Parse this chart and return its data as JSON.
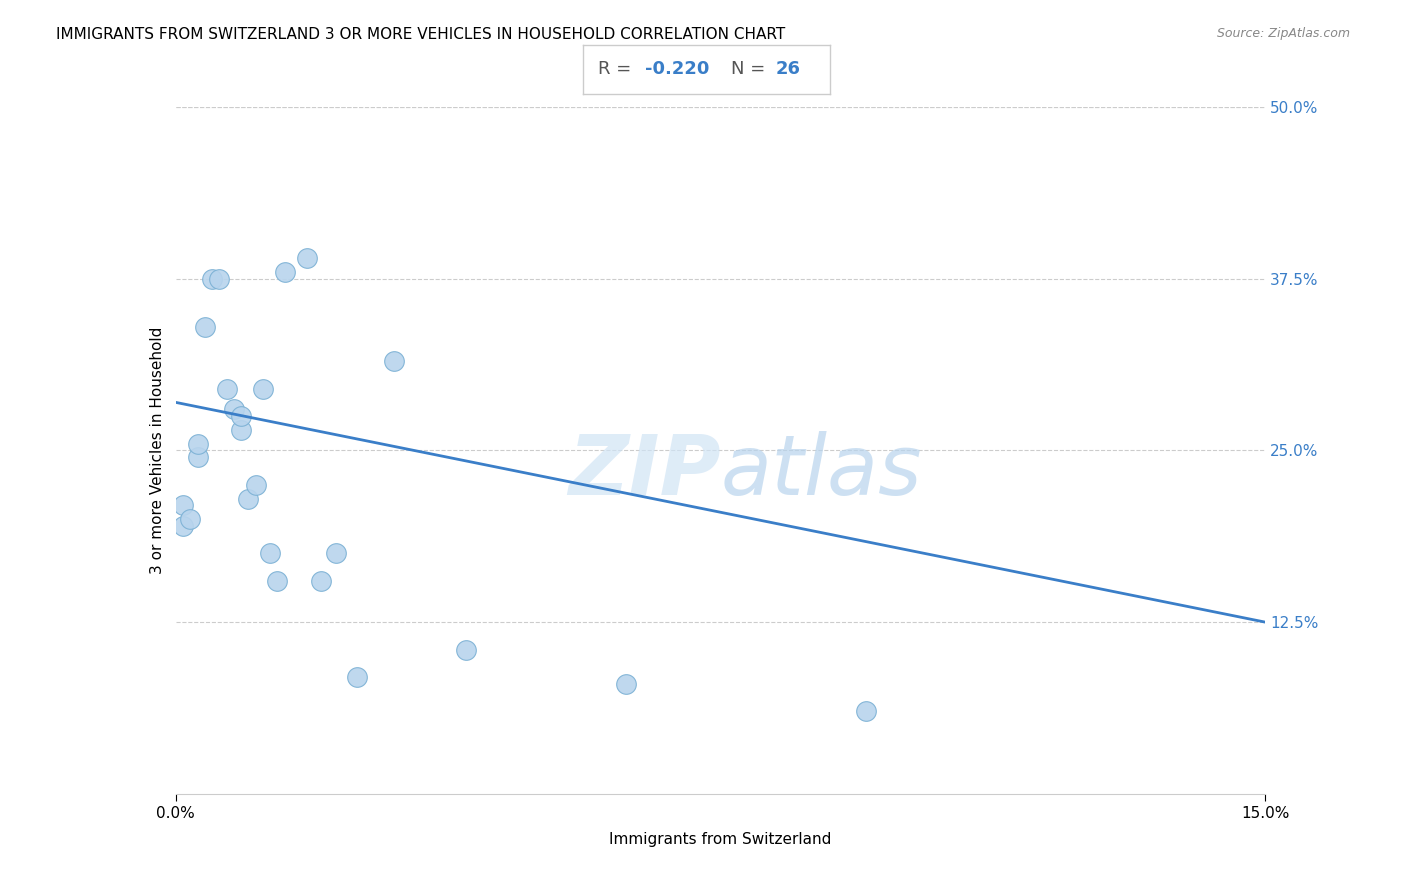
{
  "title": "IMMIGRANTS FROM SWITZERLAND 3 OR MORE VEHICLES IN HOUSEHOLD CORRELATION CHART",
  "source": "Source: ZipAtlas.com",
  "xlabel": "Immigrants from Switzerland",
  "ylabel": "3 or more Vehicles in Household",
  "xlim": [
    0.0,
    0.15
  ],
  "ylim": [
    0.0,
    0.5
  ],
  "xtick_labels": [
    "0.0%",
    "15.0%"
  ],
  "xtick_values": [
    0.0,
    0.15
  ],
  "ytick_labels": [
    "12.5%",
    "25.0%",
    "37.5%",
    "50.0%"
  ],
  "ytick_values": [
    0.125,
    0.25,
    0.375,
    0.5
  ],
  "R_label": "-0.220",
  "N_label": "26",
  "scatter_color": "#b8d4ed",
  "scatter_edgecolor": "#7ab0d4",
  "line_color": "#3a7ec8",
  "scatter_x": [
    0.001,
    0.001,
    0.002,
    0.003,
    0.004,
    0.005,
    0.006,
    0.007,
    0.008,
    0.009,
    0.009,
    0.01,
    0.011,
    0.012,
    0.013,
    0.014,
    0.015,
    0.018,
    0.02,
    0.022,
    0.025,
    0.03,
    0.04,
    0.062,
    0.095,
    0.003
  ],
  "scatter_y": [
    0.195,
    0.21,
    0.2,
    0.245,
    0.34,
    0.375,
    0.375,
    0.295,
    0.28,
    0.265,
    0.275,
    0.215,
    0.225,
    0.295,
    0.175,
    0.155,
    0.38,
    0.39,
    0.155,
    0.175,
    0.085,
    0.315,
    0.105,
    0.08,
    0.06,
    0.255
  ],
  "line_x": [
    0.0,
    0.15
  ],
  "line_y": [
    0.285,
    0.125
  ],
  "title_fontsize": 11,
  "axis_label_fontsize": 11,
  "tick_fontsize": 11,
  "annotation_fontsize": 13,
  "watermark_zip_color": "#d0e4f5",
  "watermark_atlas_color": "#b8d4ed",
  "grid_color": "#cccccc",
  "right_tick_color": "#3a7ec8"
}
